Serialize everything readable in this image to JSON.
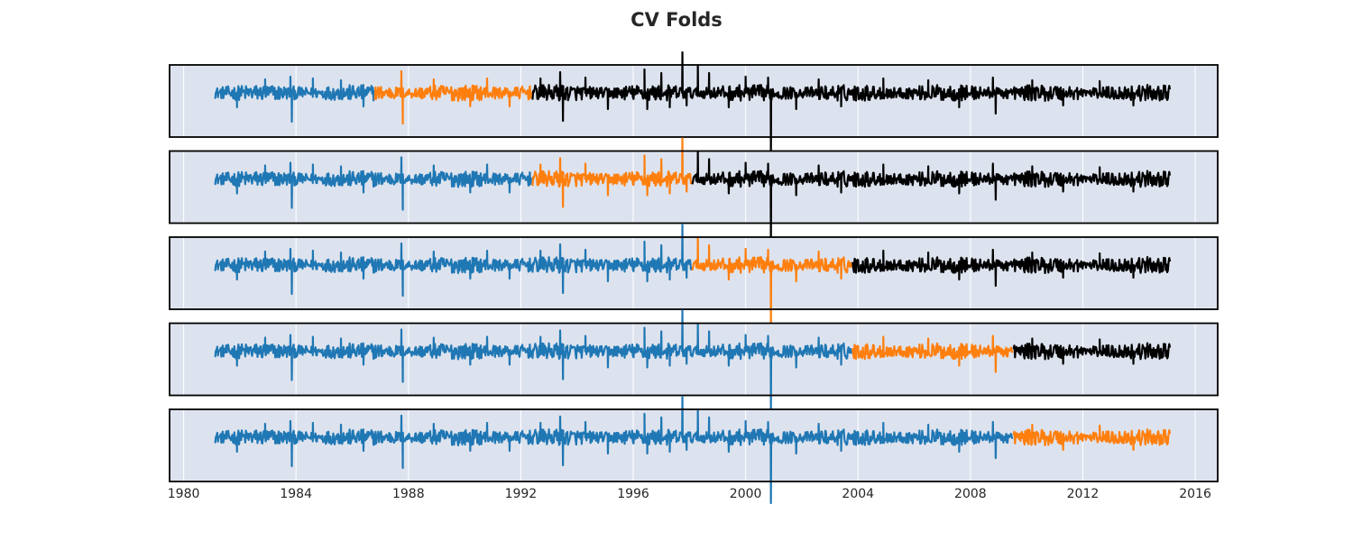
{
  "chart_data": {
    "type": "line",
    "title": "CV Folds",
    "xlabel": "",
    "ylabel": "",
    "xlim": [
      1979.5,
      2016.8
    ],
    "x_ticks": [
      "1980",
      "1984",
      "1988",
      "1992",
      "1996",
      "2000",
      "2004",
      "2008",
      "2012",
      "2016"
    ],
    "x_tick_values": [
      1980,
      1984,
      1988,
      1992,
      1996,
      2000,
      2004,
      2008,
      2012,
      2016
    ],
    "series_range": [
      1981.1,
      2015.1
    ],
    "grid": "vertical",
    "legend": "none",
    "colors": {
      "train": "#1f77b4",
      "test": "#ff7f0e",
      "unused": "#000000",
      "background": "#dde3ee"
    },
    "spikes": [
      {
        "x": 1981.9,
        "v": -1.6
      },
      {
        "x": 1982.9,
        "v": 1.5
      },
      {
        "x": 1983.8,
        "v": 1.8
      },
      {
        "x": 1983.85,
        "v": -3.2
      },
      {
        "x": 1984.6,
        "v": 1.6
      },
      {
        "x": 1985.6,
        "v": 1.4
      },
      {
        "x": 1986.4,
        "v": -1.5
      },
      {
        "x": 1987.75,
        "v": 2.4
      },
      {
        "x": 1987.8,
        "v": -3.4
      },
      {
        "x": 1988.9,
        "v": 1.5
      },
      {
        "x": 1990.2,
        "v": -1.5
      },
      {
        "x": 1990.8,
        "v": 1.6
      },
      {
        "x": 1991.6,
        "v": -1.5
      },
      {
        "x": 1992.7,
        "v": 1.6
      },
      {
        "x": 1993.4,
        "v": 2.3
      },
      {
        "x": 1993.5,
        "v": -3.1
      },
      {
        "x": 1994.3,
        "v": 1.7
      },
      {
        "x": 1995.1,
        "v": -1.8
      },
      {
        "x": 1996.4,
        "v": 2.6
      },
      {
        "x": 1996.5,
        "v": -1.8
      },
      {
        "x": 1997.0,
        "v": 2.2
      },
      {
        "x": 1997.3,
        "v": -1.6
      },
      {
        "x": 1997.75,
        "v": 4.5
      },
      {
        "x": 1997.9,
        "v": -1.4
      },
      {
        "x": 1998.3,
        "v": 3.0
      },
      {
        "x": 1998.7,
        "v": 2.2
      },
      {
        "x": 1999.4,
        "v": -1.6
      },
      {
        "x": 2000.0,
        "v": 1.8
      },
      {
        "x": 2000.8,
        "v": 1.7
      },
      {
        "x": 2000.9,
        "v": -7.3
      },
      {
        "x": 2001.8,
        "v": -1.8
      },
      {
        "x": 2002.6,
        "v": 1.5
      },
      {
        "x": 2003.4,
        "v": -1.5
      },
      {
        "x": 2004.9,
        "v": 1.6
      },
      {
        "x": 2006.5,
        "v": 1.4
      },
      {
        "x": 2007.6,
        "v": -1.6
      },
      {
        "x": 2008.8,
        "v": 1.7
      },
      {
        "x": 2008.9,
        "v": -2.3
      },
      {
        "x": 2010.2,
        "v": 1.4
      },
      {
        "x": 2011.3,
        "v": -1.4
      },
      {
        "x": 2012.6,
        "v": 1.3
      },
      {
        "x": 2013.8,
        "v": -1.4
      }
    ],
    "folds": [
      {
        "segments": [
          {
            "start": 1981.1,
            "end": 1986.8,
            "role": "train"
          },
          {
            "start": 1986.8,
            "end": 1992.4,
            "role": "test"
          },
          {
            "start": 1992.4,
            "end": 2015.1,
            "role": "unused"
          }
        ]
      },
      {
        "segments": [
          {
            "start": 1981.1,
            "end": 1992.4,
            "role": "train"
          },
          {
            "start": 1992.4,
            "end": 1998.1,
            "role": "test"
          },
          {
            "start": 1998.1,
            "end": 2015.1,
            "role": "unused"
          }
        ]
      },
      {
        "segments": [
          {
            "start": 1981.1,
            "end": 1998.1,
            "role": "train"
          },
          {
            "start": 1998.1,
            "end": 2003.8,
            "role": "test"
          },
          {
            "start": 2003.8,
            "end": 2015.1,
            "role": "unused"
          }
        ]
      },
      {
        "segments": [
          {
            "start": 1981.1,
            "end": 2003.8,
            "role": "train"
          },
          {
            "start": 2003.8,
            "end": 2009.5,
            "role": "test"
          },
          {
            "start": 2009.5,
            "end": 2015.1,
            "role": "unused"
          }
        ]
      },
      {
        "segments": [
          {
            "start": 1981.1,
            "end": 2009.5,
            "role": "train"
          },
          {
            "start": 2009.5,
            "end": 2015.1,
            "role": "test"
          }
        ]
      }
    ]
  }
}
